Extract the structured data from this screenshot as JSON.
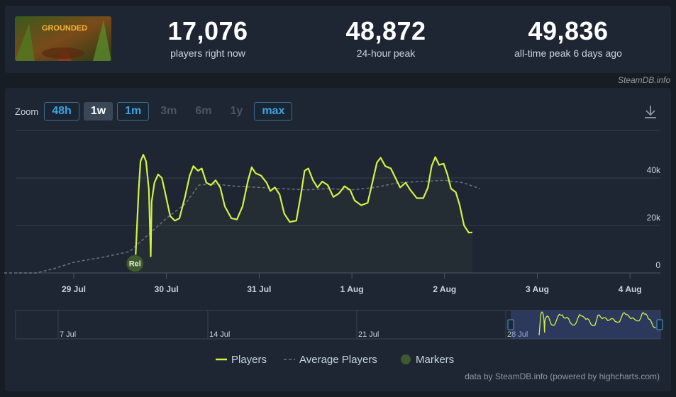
{
  "stats": [
    {
      "value": "17,076",
      "label": "players right now"
    },
    {
      "value": "48,872",
      "label": "24-hour peak"
    },
    {
      "value": "49,836",
      "label": "all-time peak 6 days ago"
    }
  ],
  "game_title": "GROUNDED",
  "credit_top": "SteamDB.info",
  "zoom": {
    "label": "Zoom",
    "options": [
      {
        "label": "48h",
        "state": "on"
      },
      {
        "label": "1w",
        "state": "selected"
      },
      {
        "label": "1m",
        "state": "on"
      },
      {
        "label": "3m",
        "state": "off"
      },
      {
        "label": "6m",
        "state": "off"
      },
      {
        "label": "1y",
        "state": "off"
      },
      {
        "label": "max",
        "state": "on"
      }
    ]
  },
  "legend": [
    {
      "label": "Players",
      "color": "#d2f244"
    },
    {
      "label": "Average Players",
      "color": "#6b7380"
    },
    {
      "label": "Markers",
      "color": "#3f5a30"
    }
  ],
  "footer": "data by SteamDB.info (powered by highcharts.com)",
  "chart_data": {
    "type": "line",
    "x_ticks": [
      "29 Jul",
      "30 Jul",
      "31 Jul",
      "1 Aug",
      "2 Aug",
      "3 Aug",
      "4 Aug"
    ],
    "y_ticks": [
      "0",
      "20k",
      "40k"
    ],
    "ylim": [
      0,
      55000
    ],
    "xlim": [
      -0.75,
      5.38
    ],
    "marker": {
      "label": "Rel",
      "x": 0.66,
      "y": 4000
    },
    "series": [
      {
        "name": "Players",
        "color": "#d2f244",
        "points": [
          [
            0.66,
            1500
          ],
          [
            0.7,
            35000
          ],
          [
            0.72,
            47000
          ],
          [
            0.75,
            49800
          ],
          [
            0.78,
            47000
          ],
          [
            0.81,
            35000
          ],
          [
            0.83,
            7000
          ],
          [
            0.84,
            30000
          ],
          [
            0.87,
            38000
          ],
          [
            0.91,
            41500
          ],
          [
            0.95,
            40000
          ],
          [
            0.99,
            33000
          ],
          [
            1.04,
            24000
          ],
          [
            1.09,
            22000
          ],
          [
            1.14,
            23000
          ],
          [
            1.2,
            32000
          ],
          [
            1.25,
            41000
          ],
          [
            1.29,
            45000
          ],
          [
            1.34,
            43000
          ],
          [
            1.38,
            44000
          ],
          [
            1.43,
            38000
          ],
          [
            1.48,
            37000
          ],
          [
            1.53,
            39000
          ],
          [
            1.58,
            36000
          ],
          [
            1.63,
            28000
          ],
          [
            1.7,
            23000
          ],
          [
            1.76,
            22500
          ],
          [
            1.82,
            28000
          ],
          [
            1.88,
            39000
          ],
          [
            1.92,
            44500
          ],
          [
            1.96,
            42000
          ],
          [
            2.02,
            41000
          ],
          [
            2.08,
            38000
          ],
          [
            2.12,
            34500
          ],
          [
            2.17,
            36000
          ],
          [
            2.22,
            33000
          ],
          [
            2.27,
            25000
          ],
          [
            2.33,
            21500
          ],
          [
            2.4,
            22000
          ],
          [
            2.45,
            33000
          ],
          [
            2.49,
            43000
          ],
          [
            2.53,
            44000
          ],
          [
            2.58,
            39000
          ],
          [
            2.63,
            36000
          ],
          [
            2.68,
            38500
          ],
          [
            2.74,
            37000
          ],
          [
            2.8,
            32000
          ],
          [
            2.86,
            33500
          ],
          [
            2.92,
            36500
          ],
          [
            2.98,
            35000
          ],
          [
            3.03,
            30500
          ],
          [
            3.1,
            28500
          ],
          [
            3.17,
            29500
          ],
          [
            3.22,
            38000
          ],
          [
            3.27,
            46500
          ],
          [
            3.31,
            48500
          ],
          [
            3.36,
            45000
          ],
          [
            3.42,
            44000
          ],
          [
            3.47,
            40000
          ],
          [
            3.52,
            36000
          ],
          [
            3.58,
            38000
          ],
          [
            3.63,
            35000
          ],
          [
            3.7,
            31500
          ],
          [
            3.77,
            31500
          ],
          [
            3.82,
            36000
          ],
          [
            3.86,
            45000
          ],
          [
            3.9,
            48800
          ],
          [
            3.94,
            45500
          ],
          [
            3.99,
            46000
          ],
          [
            4.03,
            41500
          ],
          [
            4.07,
            35500
          ],
          [
            4.12,
            34000
          ],
          [
            4.16,
            29000
          ],
          [
            4.21,
            20000
          ],
          [
            4.26,
            17000
          ],
          [
            4.3,
            17076
          ]
        ]
      },
      {
        "name": "Average Players",
        "color": "#6b7380",
        "points": [
          [
            -0.75,
            0
          ],
          [
            -0.4,
            0
          ],
          [
            -0.2,
            2000
          ],
          [
            0.0,
            4500
          ],
          [
            0.3,
            6500
          ],
          [
            0.6,
            9000
          ],
          [
            0.8,
            16000
          ],
          [
            1.0,
            23000
          ],
          [
            1.2,
            29000
          ],
          [
            1.35,
            37000
          ],
          [
            1.5,
            37500
          ],
          [
            1.75,
            36500
          ],
          [
            2.0,
            36000
          ],
          [
            2.25,
            35500
          ],
          [
            2.5,
            35000
          ],
          [
            2.75,
            35500
          ],
          [
            3.0,
            35000
          ],
          [
            3.25,
            36000
          ],
          [
            3.5,
            38000
          ],
          [
            3.75,
            38500
          ],
          [
            4.0,
            39000
          ],
          [
            4.2,
            38000
          ],
          [
            4.38,
            35500
          ]
        ]
      }
    ]
  },
  "navigator": {
    "labels": [
      "7 Jul",
      "14 Jul",
      "21 Jul",
      "28 Jul"
    ]
  }
}
